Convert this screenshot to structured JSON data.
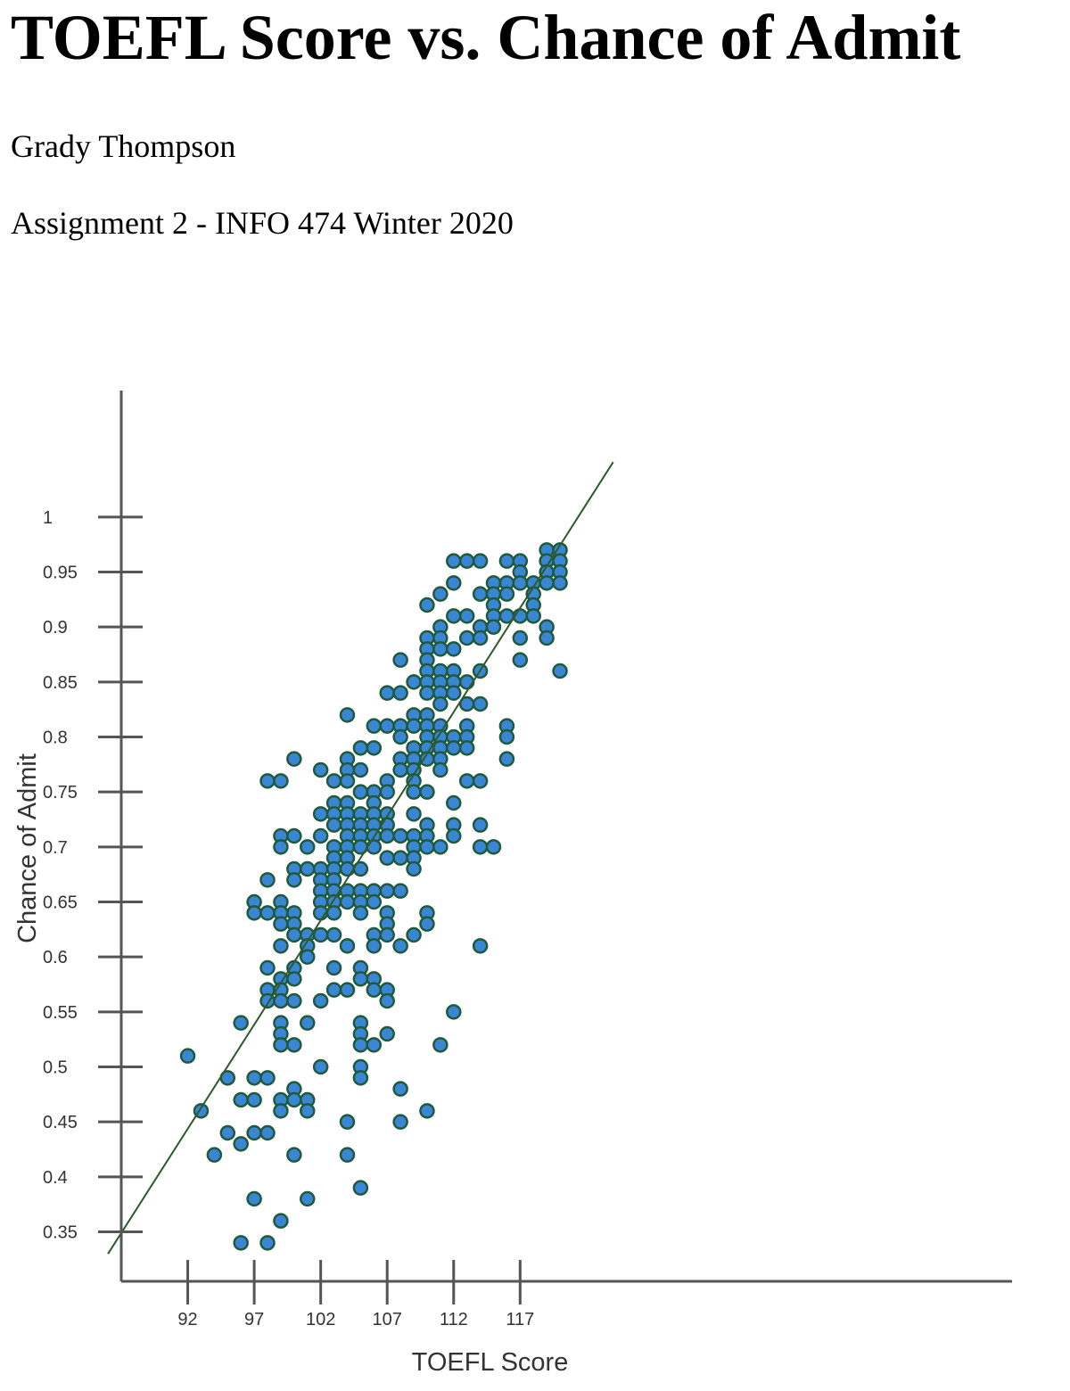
{
  "page": {
    "title": "TOEFL Score vs. Chance of Admit",
    "author": "Grady Thompson",
    "subtitle": "Assignment 2 - INFO 474 Winter 2020"
  },
  "chart_data": {
    "type": "scatter",
    "xlabel": "TOEFL Score",
    "ylabel": "Chance of Admit",
    "xlim": [
      87,
      154
    ],
    "ylim": [
      0.305,
      1.115
    ],
    "x_ticks": [
      92,
      97,
      102,
      107,
      112,
      117
    ],
    "y_ticks": [
      0.35,
      0.4,
      0.45,
      0.5,
      0.55,
      0.6,
      0.65,
      0.7,
      0.75,
      0.8,
      0.85,
      0.9,
      0.95,
      1
    ],
    "grid": false,
    "point_color": "#3a86d4",
    "point_stroke": "#1f5a3a",
    "trendline": {
      "color": "#2d5a2a",
      "x": [
        86,
        124
      ],
      "y": [
        0.33,
        1.05
      ]
    },
    "points": [
      [
        92,
        0.51
      ],
      [
        93,
        0.46
      ],
      [
        94,
        0.42
      ],
      [
        95,
        0.49
      ],
      [
        95,
        0.44
      ],
      [
        96,
        0.54
      ],
      [
        96,
        0.47
      ],
      [
        96,
        0.43
      ],
      [
        96,
        0.34
      ],
      [
        97,
        0.65
      ],
      [
        97,
        0.64
      ],
      [
        97,
        0.49
      ],
      [
        97,
        0.47
      ],
      [
        97,
        0.44
      ],
      [
        97,
        0.38
      ],
      [
        98,
        0.76
      ],
      [
        98,
        0.67
      ],
      [
        98,
        0.64
      ],
      [
        98,
        0.59
      ],
      [
        98,
        0.57
      ],
      [
        98,
        0.56
      ],
      [
        98,
        0.49
      ],
      [
        98,
        0.44
      ],
      [
        98,
        0.34
      ],
      [
        99,
        0.76
      ],
      [
        99,
        0.71
      ],
      [
        99,
        0.7
      ],
      [
        99,
        0.65
      ],
      [
        99,
        0.64
      ],
      [
        99,
        0.63
      ],
      [
        99,
        0.61
      ],
      [
        99,
        0.58
      ],
      [
        99,
        0.57
      ],
      [
        99,
        0.56
      ],
      [
        99,
        0.54
      ],
      [
        99,
        0.53
      ],
      [
        99,
        0.52
      ],
      [
        99,
        0.47
      ],
      [
        99,
        0.46
      ],
      [
        99,
        0.36
      ],
      [
        100,
        0.78
      ],
      [
        100,
        0.71
      ],
      [
        100,
        0.68
      ],
      [
        100,
        0.67
      ],
      [
        100,
        0.64
      ],
      [
        100,
        0.63
      ],
      [
        100,
        0.62
      ],
      [
        100,
        0.59
      ],
      [
        100,
        0.58
      ],
      [
        100,
        0.56
      ],
      [
        100,
        0.52
      ],
      [
        100,
        0.48
      ],
      [
        100,
        0.47
      ],
      [
        100,
        0.42
      ],
      [
        101,
        0.7
      ],
      [
        101,
        0.68
      ],
      [
        101,
        0.62
      ],
      [
        101,
        0.61
      ],
      [
        101,
        0.6
      ],
      [
        101,
        0.54
      ],
      [
        101,
        0.47
      ],
      [
        101,
        0.46
      ],
      [
        101,
        0.38
      ],
      [
        102,
        0.77
      ],
      [
        102,
        0.73
      ],
      [
        102,
        0.71
      ],
      [
        102,
        0.68
      ],
      [
        102,
        0.67
      ],
      [
        102,
        0.66
      ],
      [
        102,
        0.65
      ],
      [
        102,
        0.64
      ],
      [
        102,
        0.62
      ],
      [
        102,
        0.56
      ],
      [
        102,
        0.5
      ],
      [
        103,
        0.76
      ],
      [
        103,
        0.74
      ],
      [
        103,
        0.73
      ],
      [
        103,
        0.72
      ],
      [
        103,
        0.7
      ],
      [
        103,
        0.69
      ],
      [
        103,
        0.68
      ],
      [
        103,
        0.67
      ],
      [
        103,
        0.66
      ],
      [
        103,
        0.65
      ],
      [
        103,
        0.64
      ],
      [
        103,
        0.62
      ],
      [
        103,
        0.59
      ],
      [
        103,
        0.57
      ],
      [
        104,
        0.82
      ],
      [
        104,
        0.78
      ],
      [
        104,
        0.77
      ],
      [
        104,
        0.76
      ],
      [
        104,
        0.74
      ],
      [
        104,
        0.73
      ],
      [
        104,
        0.72
      ],
      [
        104,
        0.71
      ],
      [
        104,
        0.7
      ],
      [
        104,
        0.69
      ],
      [
        104,
        0.68
      ],
      [
        104,
        0.66
      ],
      [
        104,
        0.65
      ],
      [
        104,
        0.61
      ],
      [
        104,
        0.57
      ],
      [
        104,
        0.45
      ],
      [
        104,
        0.42
      ],
      [
        105,
        0.79
      ],
      [
        105,
        0.77
      ],
      [
        105,
        0.75
      ],
      [
        105,
        0.73
      ],
      [
        105,
        0.72
      ],
      [
        105,
        0.71
      ],
      [
        105,
        0.7
      ],
      [
        105,
        0.68
      ],
      [
        105,
        0.66
      ],
      [
        105,
        0.65
      ],
      [
        105,
        0.64
      ],
      [
        105,
        0.59
      ],
      [
        105,
        0.58
      ],
      [
        105,
        0.54
      ],
      [
        105,
        0.53
      ],
      [
        105,
        0.52
      ],
      [
        105,
        0.5
      ],
      [
        105,
        0.49
      ],
      [
        105,
        0.39
      ],
      [
        106,
        0.81
      ],
      [
        106,
        0.79
      ],
      [
        106,
        0.75
      ],
      [
        106,
        0.74
      ],
      [
        106,
        0.73
      ],
      [
        106,
        0.72
      ],
      [
        106,
        0.71
      ],
      [
        106,
        0.7
      ],
      [
        106,
        0.66
      ],
      [
        106,
        0.65
      ],
      [
        106,
        0.62
      ],
      [
        106,
        0.61
      ],
      [
        106,
        0.58
      ],
      [
        106,
        0.57
      ],
      [
        106,
        0.52
      ],
      [
        107,
        0.84
      ],
      [
        107,
        0.81
      ],
      [
        107,
        0.76
      ],
      [
        107,
        0.75
      ],
      [
        107,
        0.73
      ],
      [
        107,
        0.72
      ],
      [
        107,
        0.71
      ],
      [
        107,
        0.69
      ],
      [
        107,
        0.66
      ],
      [
        107,
        0.64
      ],
      [
        107,
        0.63
      ],
      [
        107,
        0.62
      ],
      [
        107,
        0.57
      ],
      [
        107,
        0.56
      ],
      [
        107,
        0.53
      ],
      [
        108,
        0.87
      ],
      [
        108,
        0.84
      ],
      [
        108,
        0.81
      ],
      [
        108,
        0.8
      ],
      [
        108,
        0.78
      ],
      [
        108,
        0.77
      ],
      [
        108,
        0.71
      ],
      [
        108,
        0.69
      ],
      [
        108,
        0.66
      ],
      [
        108,
        0.61
      ],
      [
        108,
        0.48
      ],
      [
        108,
        0.45
      ],
      [
        109,
        0.85
      ],
      [
        109,
        0.82
      ],
      [
        109,
        0.81
      ],
      [
        109,
        0.79
      ],
      [
        109,
        0.78
      ],
      [
        109,
        0.77
      ],
      [
        109,
        0.76
      ],
      [
        109,
        0.75
      ],
      [
        109,
        0.73
      ],
      [
        109,
        0.71
      ],
      [
        109,
        0.7
      ],
      [
        109,
        0.69
      ],
      [
        109,
        0.68
      ],
      [
        109,
        0.62
      ],
      [
        110,
        0.92
      ],
      [
        110,
        0.89
      ],
      [
        110,
        0.88
      ],
      [
        110,
        0.87
      ],
      [
        110,
        0.86
      ],
      [
        110,
        0.85
      ],
      [
        110,
        0.84
      ],
      [
        110,
        0.82
      ],
      [
        110,
        0.81
      ],
      [
        110,
        0.8
      ],
      [
        110,
        0.79
      ],
      [
        110,
        0.78
      ],
      [
        110,
        0.75
      ],
      [
        110,
        0.72
      ],
      [
        110,
        0.71
      ],
      [
        110,
        0.7
      ],
      [
        110,
        0.64
      ],
      [
        110,
        0.63
      ],
      [
        110,
        0.46
      ],
      [
        111,
        0.93
      ],
      [
        111,
        0.9
      ],
      [
        111,
        0.89
      ],
      [
        111,
        0.88
      ],
      [
        111,
        0.86
      ],
      [
        111,
        0.85
      ],
      [
        111,
        0.84
      ],
      [
        111,
        0.83
      ],
      [
        111,
        0.81
      ],
      [
        111,
        0.8
      ],
      [
        111,
        0.79
      ],
      [
        111,
        0.78
      ],
      [
        111,
        0.77
      ],
      [
        111,
        0.7
      ],
      [
        111,
        0.52
      ],
      [
        112,
        0.96
      ],
      [
        112,
        0.94
      ],
      [
        112,
        0.91
      ],
      [
        112,
        0.88
      ],
      [
        112,
        0.86
      ],
      [
        112,
        0.85
      ],
      [
        112,
        0.84
      ],
      [
        112,
        0.8
      ],
      [
        112,
        0.79
      ],
      [
        112,
        0.74
      ],
      [
        112,
        0.72
      ],
      [
        112,
        0.71
      ],
      [
        112,
        0.55
      ],
      [
        113,
        0.96
      ],
      [
        113,
        0.91
      ],
      [
        113,
        0.89
      ],
      [
        113,
        0.85
      ],
      [
        113,
        0.83
      ],
      [
        113,
        0.81
      ],
      [
        113,
        0.8
      ],
      [
        113,
        0.79
      ],
      [
        113,
        0.76
      ],
      [
        114,
        0.96
      ],
      [
        114,
        0.93
      ],
      [
        114,
        0.9
      ],
      [
        114,
        0.89
      ],
      [
        114,
        0.86
      ],
      [
        114,
        0.83
      ],
      [
        114,
        0.76
      ],
      [
        114,
        0.72
      ],
      [
        114,
        0.7
      ],
      [
        114,
        0.61
      ],
      [
        115,
        0.94
      ],
      [
        115,
        0.93
      ],
      [
        115,
        0.92
      ],
      [
        115,
        0.91
      ],
      [
        115,
        0.9
      ],
      [
        115,
        0.7
      ],
      [
        116,
        0.96
      ],
      [
        116,
        0.94
      ],
      [
        116,
        0.93
      ],
      [
        116,
        0.91
      ],
      [
        116,
        0.81
      ],
      [
        116,
        0.8
      ],
      [
        116,
        0.78
      ],
      [
        117,
        0.96
      ],
      [
        117,
        0.95
      ],
      [
        117,
        0.94
      ],
      [
        117,
        0.91
      ],
      [
        117,
        0.89
      ],
      [
        117,
        0.87
      ],
      [
        118,
        0.94
      ],
      [
        118,
        0.93
      ],
      [
        118,
        0.92
      ],
      [
        118,
        0.91
      ],
      [
        119,
        0.97
      ],
      [
        119,
        0.96
      ],
      [
        119,
        0.95
      ],
      [
        119,
        0.94
      ],
      [
        119,
        0.9
      ],
      [
        119,
        0.89
      ],
      [
        120,
        0.97
      ],
      [
        120,
        0.96
      ],
      [
        120,
        0.95
      ],
      [
        120,
        0.94
      ],
      [
        120,
        0.86
      ]
    ]
  }
}
